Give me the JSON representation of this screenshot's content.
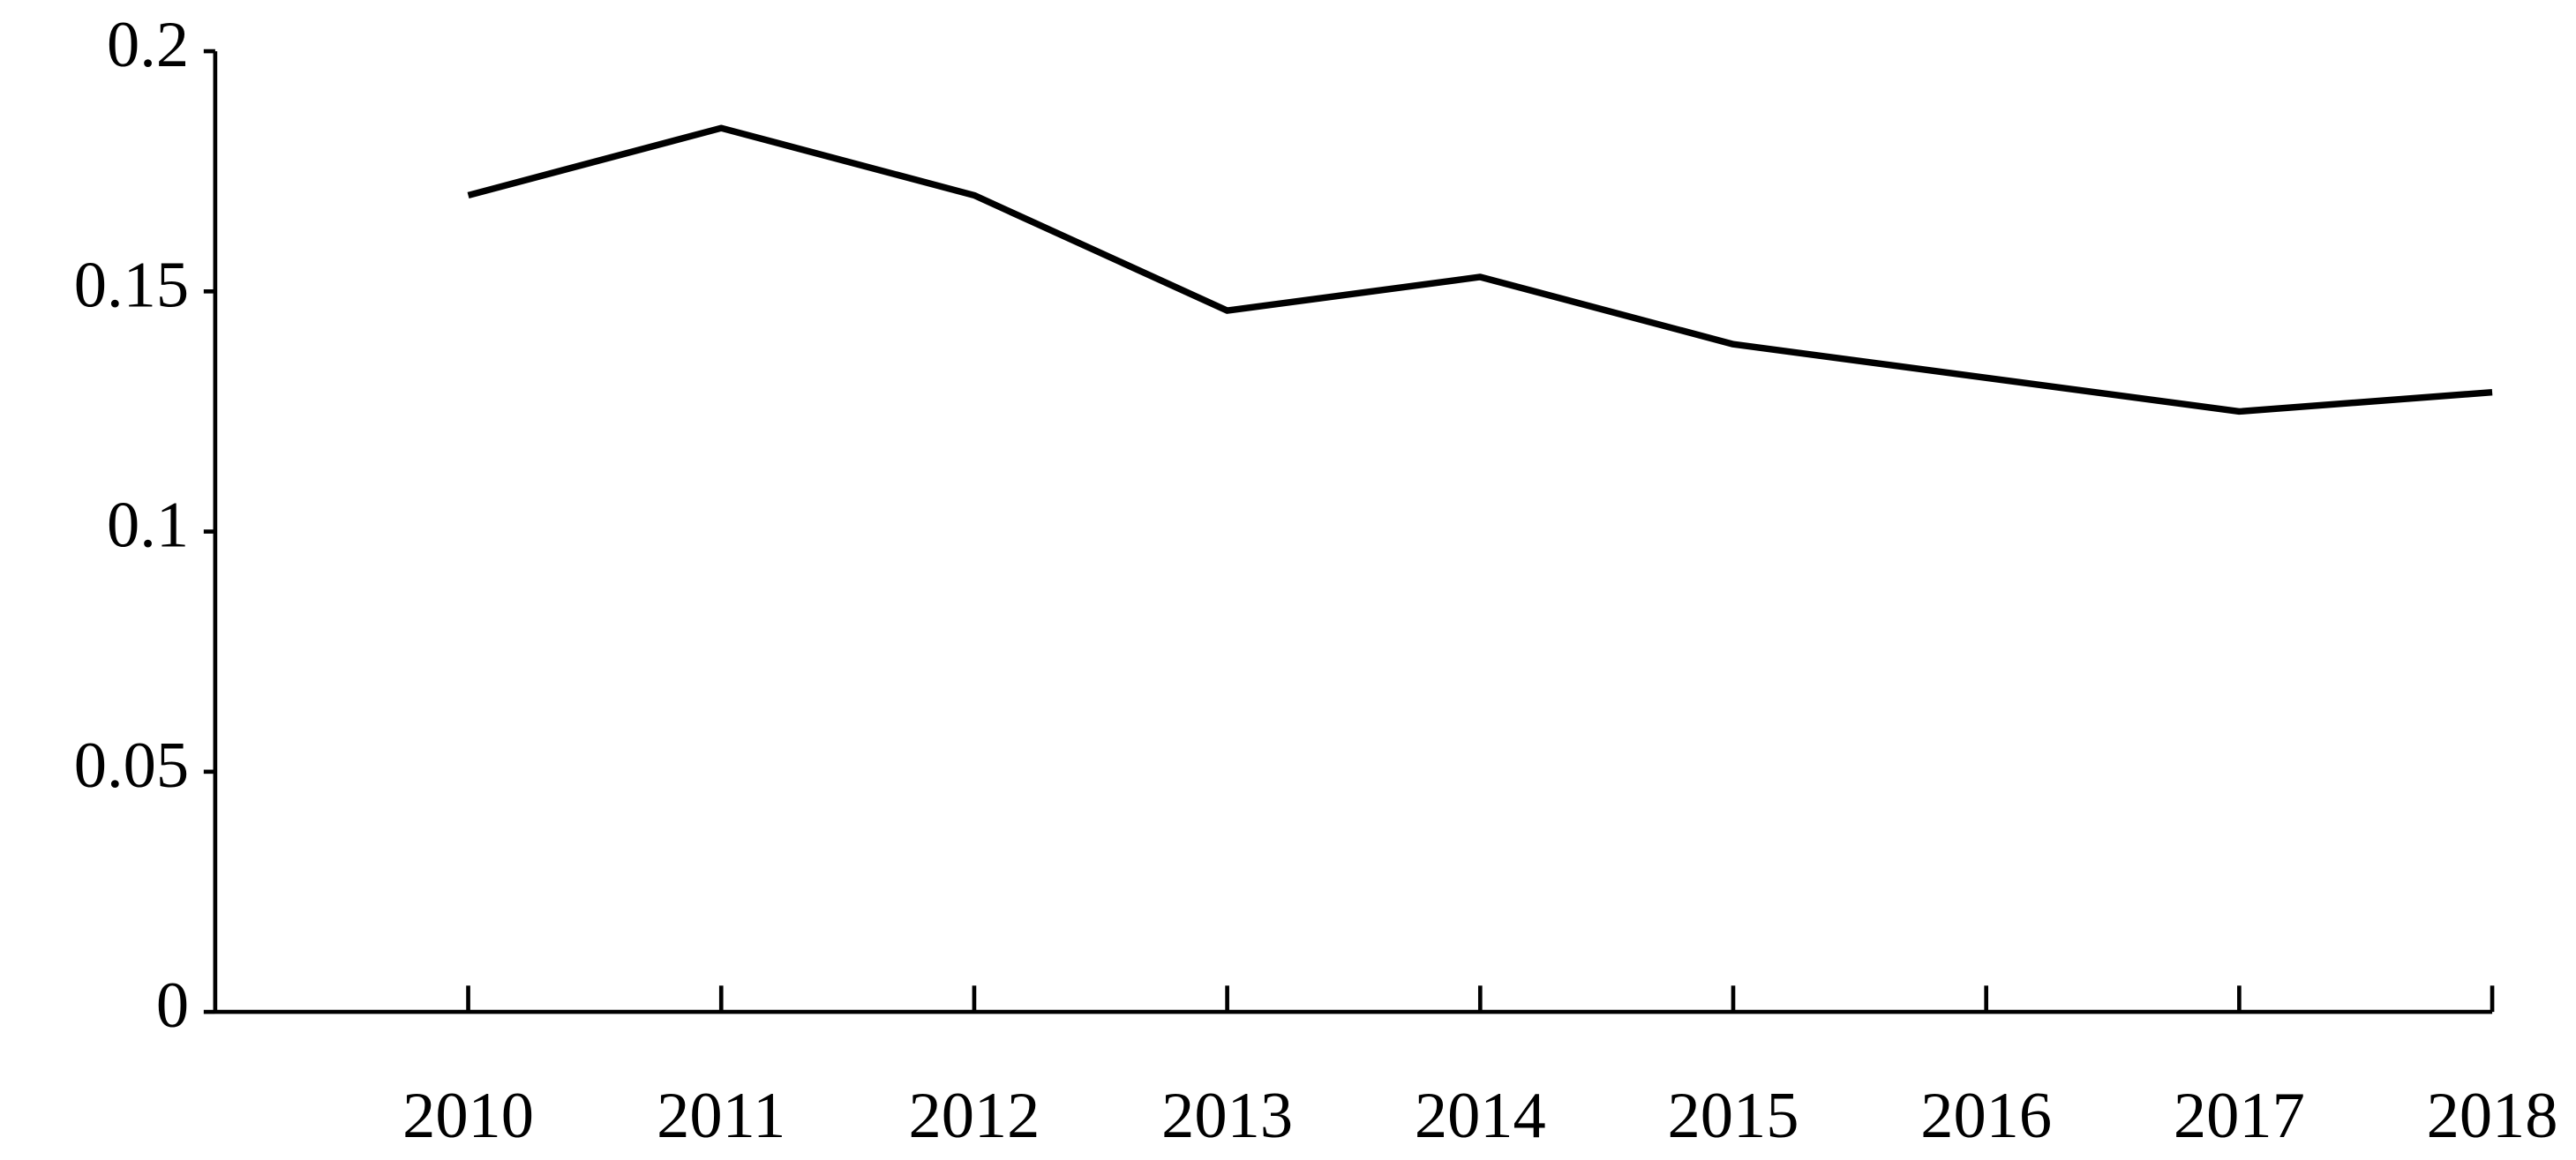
{
  "chart_data": {
    "type": "line",
    "categories": [
      "2010",
      "2011",
      "2012",
      "2013",
      "2014",
      "2015",
      "2016",
      "2017",
      "2018"
    ],
    "values": [
      0.17,
      0.184,
      0.17,
      0.146,
      0.153,
      0.139,
      0.132,
      0.125,
      0.129
    ],
    "color": "#000000",
    "ylim": [
      0,
      0.2
    ],
    "yticks": [
      0,
      0.05,
      0.1,
      0.15,
      0.2
    ],
    "grid": false
  }
}
